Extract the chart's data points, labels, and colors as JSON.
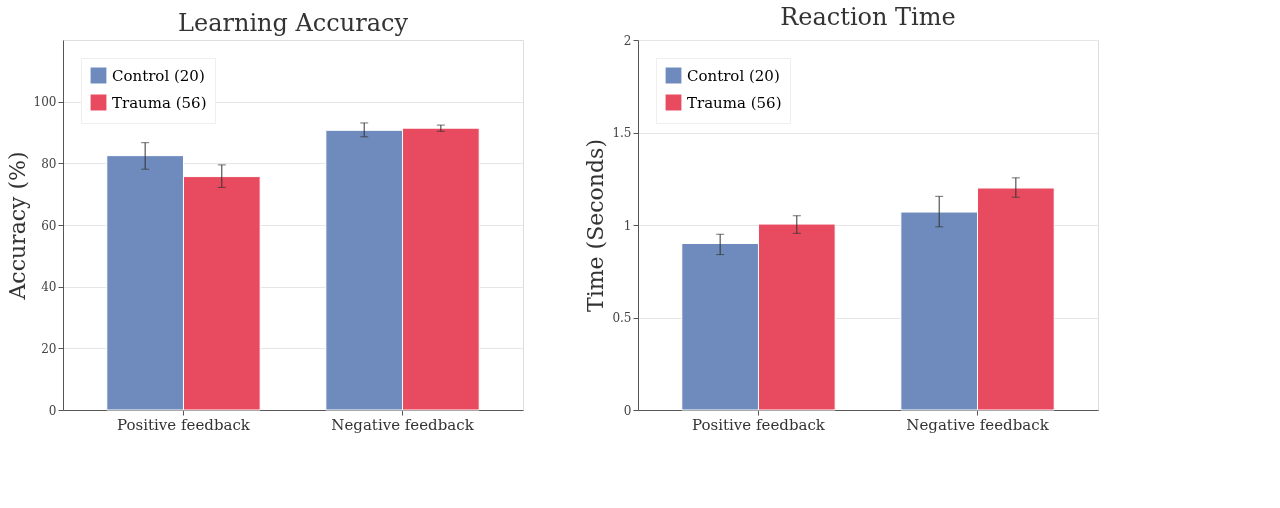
{
  "chart_data": [
    {
      "type": "bar",
      "title": "Learning Accuracy",
      "ylabel": "Accuracy (%)",
      "categories": [
        "Positive feedback",
        "Negative feedback"
      ],
      "series": [
        {
          "name": "Control (20)",
          "color": "#6f8bbd",
          "values": [
            82.5,
            90.7
          ],
          "errors": [
            [
              78.1,
              86.7
            ],
            [
              88.6,
              93.1
            ]
          ]
        },
        {
          "name": "Trauma (56)",
          "color": "#e84a5f",
          "values": [
            75.7,
            91.4
          ],
          "errors": [
            [
              72.2,
              79.5
            ],
            [
              90.4,
              92.4
            ]
          ]
        }
      ],
      "ylim": [
        0,
        120
      ],
      "yticks": [
        0,
        20,
        40,
        60,
        80,
        100
      ],
      "grid": "y",
      "legend": "top left"
    },
    {
      "type": "bar",
      "title": "Reaction Time",
      "ylabel": "Time (Seconds)",
      "categories": [
        "Positive feedback",
        "Negative feedback"
      ],
      "series": [
        {
          "name": "Control (20)",
          "color": "#6f8bbd",
          "values": [
            0.9,
            1.07
          ],
          "errors": [
            [
              0.84,
              0.95
            ],
            [
              0.99,
              1.155
            ]
          ]
        },
        {
          "name": "Trauma (56)",
          "color": "#e84a5f",
          "values": [
            1.005,
            1.2
          ],
          "errors": [
            [
              0.955,
              1.05
            ],
            [
              1.15,
              1.255
            ]
          ]
        }
      ],
      "ylim": [
        0,
        2
      ],
      "yticks": [
        0,
        0.5,
        1,
        1.5,
        2
      ],
      "grid": "y",
      "legend": "top left"
    }
  ]
}
